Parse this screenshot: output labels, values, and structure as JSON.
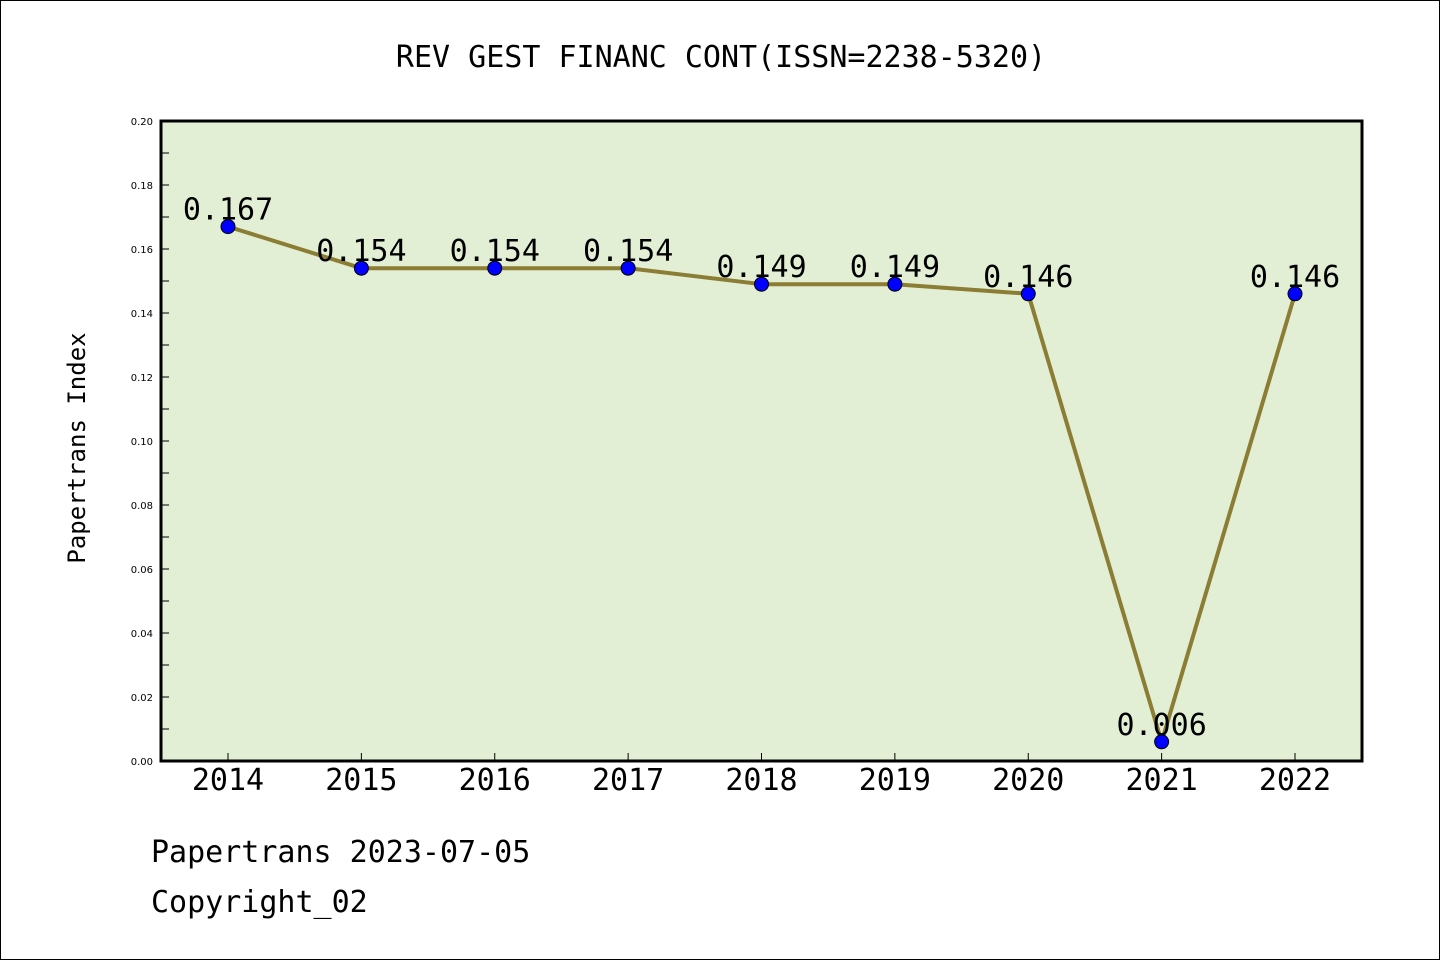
{
  "chart_data": {
    "type": "line",
    "title": "REV GEST FINANC CONT(ISSN=2238-5320)",
    "xlabel": "",
    "ylabel": "Papertrans Index",
    "categories": [
      "2014",
      "2015",
      "2016",
      "2017",
      "2018",
      "2019",
      "2020",
      "2021",
      "2022"
    ],
    "values": [
      0.167,
      0.154,
      0.154,
      0.154,
      0.149,
      0.149,
      0.146,
      0.006,
      0.146
    ],
    "data_labels": [
      "0.167",
      "0.154",
      "0.154",
      "0.154",
      "0.149",
      "0.149",
      "0.146",
      "0.006",
      "0.146"
    ],
    "ylim": [
      0.0,
      0.2
    ],
    "yticks": [
      "0.00",
      "0.02",
      "0.04",
      "0.06",
      "0.08",
      "0.10",
      "0.12",
      "0.14",
      "0.16",
      "0.18",
      "0.20"
    ],
    "grid": false,
    "legend": "none",
    "colors": {
      "plot_background": "#e2efd5",
      "line": "#8b7d33",
      "marker": "#0000ff"
    }
  },
  "footer": {
    "line1": "Papertrans 2023-07-05",
    "line2": "Copyright_02"
  }
}
